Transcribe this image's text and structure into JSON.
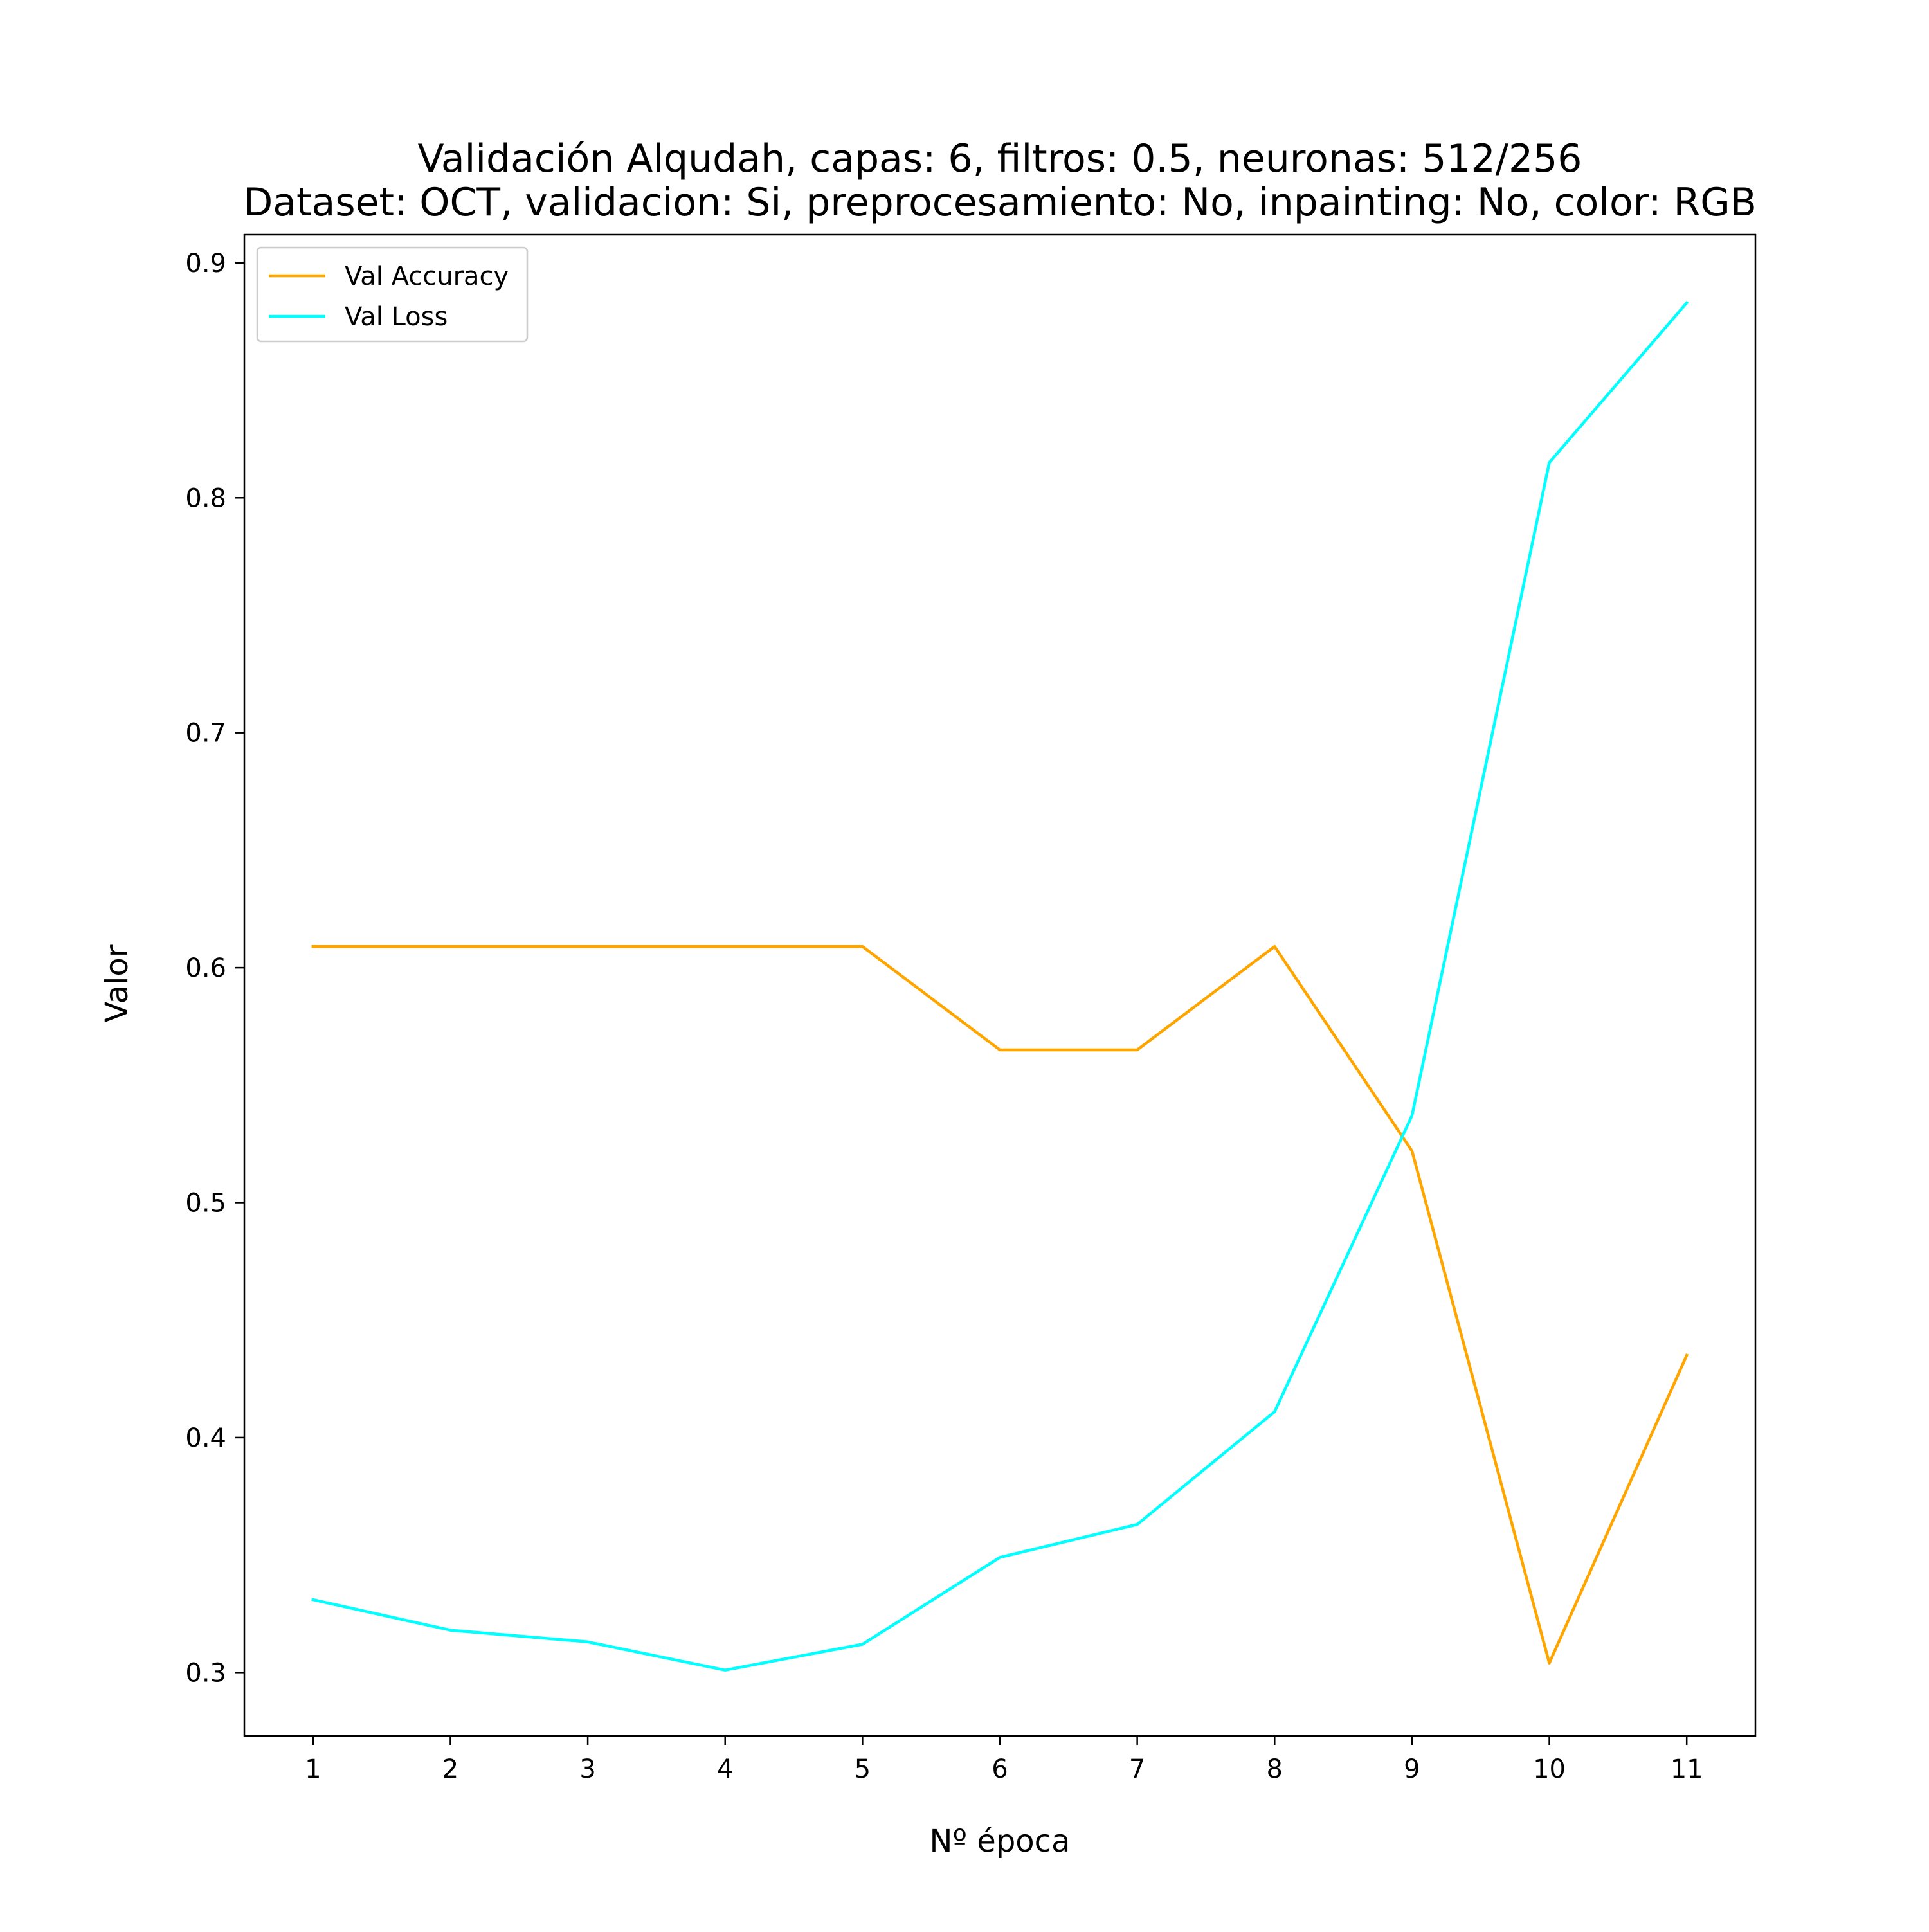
{
  "chart_data": {
    "type": "line",
    "title": [
      "Validación Alqudah, capas: 6, filtros: 0.5, neuronas: 512/256",
      "Dataset: OCT, validacion: Si, preprocesamiento: No, inpainting: No, color: RGB"
    ],
    "xlabel": "Nº época",
    "ylabel": "Valor",
    "x": [
      1,
      2,
      3,
      4,
      5,
      6,
      7,
      8,
      9,
      10,
      11
    ],
    "xticks": [
      "1",
      "2",
      "3",
      "4",
      "5",
      "6",
      "7",
      "8",
      "9",
      "10",
      "11"
    ],
    "yticks": [
      "0.3",
      "0.4",
      "0.5",
      "0.6",
      "0.7",
      "0.8",
      "0.9"
    ],
    "xlim": [
      0.5,
      11.5
    ],
    "ylim": [
      0.273,
      0.912
    ],
    "grid": false,
    "legend_position": "top-left",
    "series": [
      {
        "name": "Val Accuracy",
        "color": "#FFA500",
        "values": [
          0.609,
          0.609,
          0.609,
          0.609,
          0.609,
          0.565,
          0.565,
          0.609,
          0.522,
          0.304,
          0.435
        ]
      },
      {
        "name": "Val Loss",
        "color": "#00FFFF",
        "values": [
          0.331,
          0.318,
          0.313,
          0.301,
          0.312,
          0.349,
          0.363,
          0.411,
          0.537,
          0.815,
          0.883
        ]
      }
    ]
  }
}
